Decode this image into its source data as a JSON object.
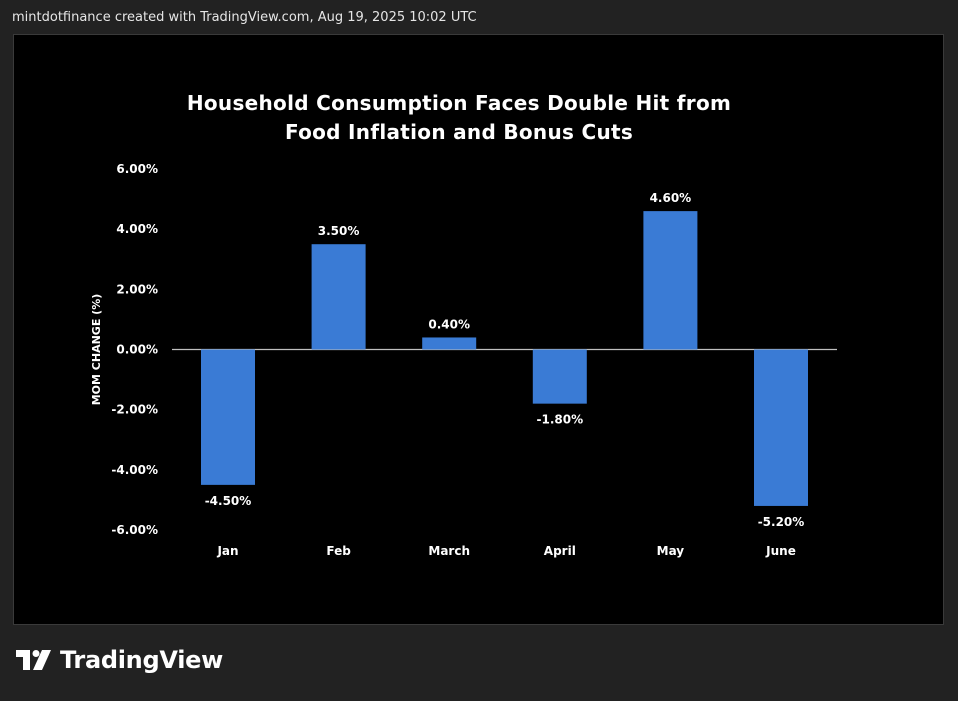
{
  "attribution": "mintdotfinance created with TradingView.com, Aug 19, 2025 10:02 UTC",
  "brand": {
    "name": "TradingView",
    "logo_icon": "tradingview-logo-icon"
  },
  "colors": {
    "bar": "#3a7bd5",
    "background": "#000000",
    "text": "#ffffff",
    "zero_line": "#bfbfbf"
  },
  "chart_data": {
    "type": "bar",
    "title_lines": [
      "Household Consumption Faces Double Hit from",
      "Food Inflation and Bonus Cuts"
    ],
    "ylabel": "MOM CHANGE (%)",
    "categories": [
      "Jan",
      "Feb",
      "March",
      "April",
      "May",
      "June"
    ],
    "values": [
      -4.5,
      3.5,
      0.4,
      -1.8,
      4.6,
      -5.2
    ],
    "value_labels": [
      "-4.50%",
      "3.50%",
      "0.40%",
      "-1.80%",
      "4.60%",
      "-5.20%"
    ],
    "ylim": [
      -6,
      6
    ],
    "yticks": [
      6,
      4,
      2,
      0,
      -2,
      -4,
      -6
    ],
    "ytick_labels": [
      "6.00%",
      "4.00%",
      "2.00%",
      "0.00%",
      "-2.00%",
      "-4.00%",
      "-6.00%"
    ],
    "grid": false,
    "legend": "none"
  }
}
